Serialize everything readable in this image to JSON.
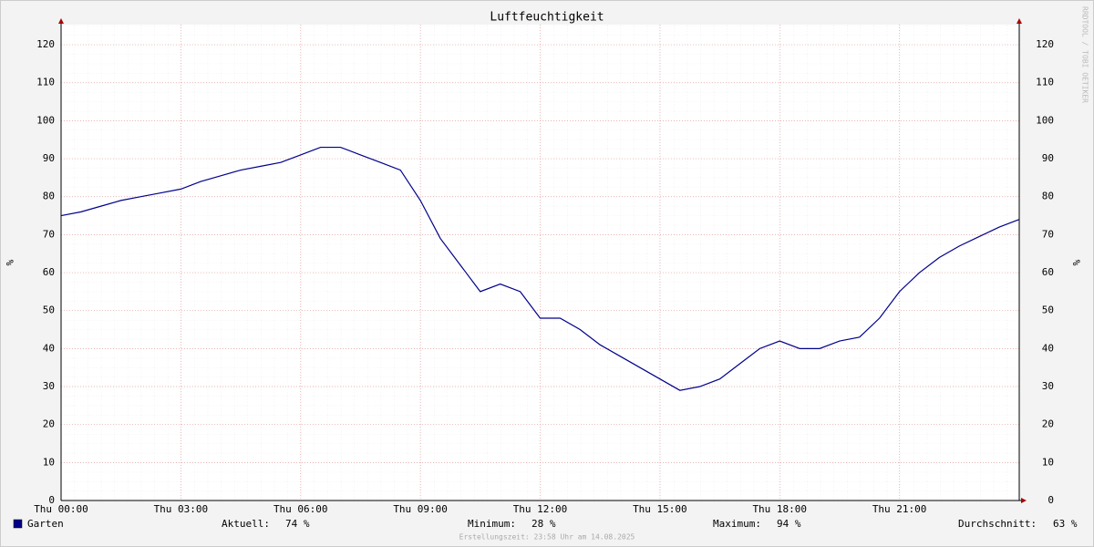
{
  "chart_data": {
    "type": "line",
    "title": "Luftfeuchtigkeit",
    "y_label": "%",
    "y2_label": "%",
    "watermark": "RRDTOOL / TOBI OETIKER",
    "footer": "Erstellungszeit: 23:58 Uhr am 14.08.2025",
    "x": [
      0,
      0.5,
      1,
      1.5,
      2,
      2.5,
      3,
      3.5,
      4,
      4.5,
      5,
      5.5,
      6,
      6.5,
      7,
      7.5,
      8,
      8.5,
      9,
      9.5,
      10,
      10.5,
      11,
      11.5,
      12,
      12.5,
      13,
      13.5,
      14,
      14.5,
      15,
      15.5,
      16,
      16.5,
      17,
      17.5,
      18,
      18.5,
      19,
      19.5,
      20,
      20.5,
      21,
      21.5,
      22,
      22.5,
      23,
      23.5,
      24
    ],
    "series": [
      {
        "name": "Garten",
        "color": "#00008b",
        "values": [
          75,
          76,
          77.5,
          79,
          80,
          81,
          82,
          84,
          85.5,
          87,
          88,
          89,
          91,
          93,
          93,
          91,
          89,
          87,
          79,
          69,
          62,
          55,
          57,
          55,
          48,
          48,
          45,
          41,
          38,
          35,
          32,
          29,
          30,
          32,
          36,
          40,
          42,
          40,
          40,
          42,
          43,
          48,
          55,
          60,
          64,
          67,
          69.5,
          72,
          74
        ]
      }
    ],
    "stats": [
      {
        "label": "Aktuell:",
        "text": "74 %"
      },
      {
        "label": "Minimum:",
        "text": "28 %"
      },
      {
        "label": "Maximum:",
        "text": "94 %"
      },
      {
        "label": "Durchschnitt:",
        "text": "63 %"
      }
    ],
    "xlim": [
      0,
      24
    ],
    "xticks": [
      {
        "value": 0,
        "label": "Thu 00:00"
      },
      {
        "value": 3,
        "label": "Thu 03:00"
      },
      {
        "value": 6,
        "label": "Thu 06:00"
      },
      {
        "value": 9,
        "label": "Thu 09:00"
      },
      {
        "value": 12,
        "label": "Thu 12:00"
      },
      {
        "value": 15,
        "label": "Thu 15:00"
      },
      {
        "value": 18,
        "label": "Thu 18:00"
      },
      {
        "value": 21,
        "label": "Thu 21:00"
      }
    ],
    "ylim": [
      0,
      125.3
    ],
    "yticks": [
      0,
      10,
      20,
      30,
      40,
      50,
      60,
      70,
      80,
      90,
      100,
      110,
      120
    ],
    "grid": true
  }
}
